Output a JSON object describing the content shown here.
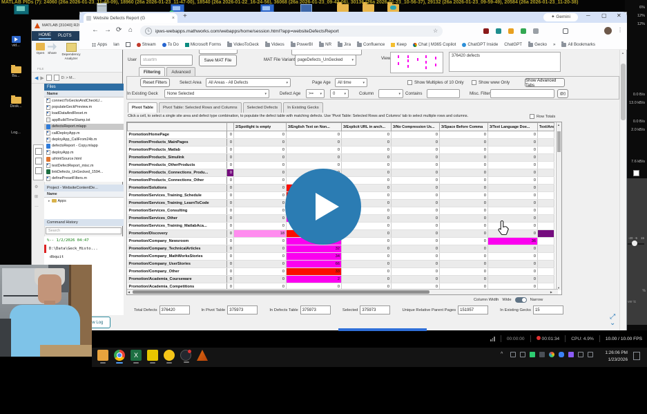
{
  "top": {
    "pids_text": "MATLAB PIDs (7): 24060 (26a 2026-01-23_11-48-09), 18960 (26a 2026-01-23_11-47-00), 18540 (26a 2026-01-22_16-24-56), 36068 (26a 2026-01-23_09-43-06), 30136 (26a 2026-01-23_10-56-37), 29132 (26a 2026-01-23_09-59-49), 20584 (26a 2026-01-23_11-20-38)"
  },
  "desktop": {
    "top_icons": [
      "monitor-teal",
      "recycle-bin",
      "monitor-blue-badge",
      "monitor-blue",
      "window-blue",
      "folder",
      "folder",
      "folder-cloud"
    ],
    "left_icons": [
      {
        "label": "vid...",
        "kind": "video"
      },
      {
        "label": "Ba...",
        "kind": "folder"
      },
      {
        "label": "Desk...",
        "kind": "folder"
      },
      {
        "label": "Log...",
        "kind": "warning"
      }
    ]
  },
  "side": {
    "cpu": [
      "6%",
      "12%",
      "12%"
    ],
    "net": [
      "0.0 B/s",
      "13.0 kB/s",
      "0.0 B/s",
      "2.0 kB/s"
    ],
    "rate": "7.6 kB/s",
    "slider_labels": [
      "-20",
      "-5",
      "15"
    ],
    "pct": "%",
    "misc": "ver tc"
  },
  "browser": {
    "tab_title": "Website Defects Report (G",
    "close_glyph": "×",
    "new_tab_glyph": "+",
    "gemini_label": "✦ Gemini",
    "url": "ipws-webapps.mathworks.com/webapps/home/session.html?app=websiteDefectsReport",
    "bookmarks": [
      {
        "label": "Apps",
        "icon": "apps"
      },
      {
        "label": "Ian",
        "icon": "none"
      },
      {
        "label": "",
        "icon": "grid"
      },
      {
        "label": "Stream",
        "icon": "stream"
      },
      {
        "label": "To Do",
        "icon": "todo"
      },
      {
        "label": "Microsoft Forms",
        "icon": "forms"
      },
      {
        "label": "VideoToGeck",
        "icon": "folder"
      },
      {
        "label": "Videos",
        "icon": "folder"
      },
      {
        "label": "PowerBI",
        "icon": "folder"
      },
      {
        "label": "NR",
        "icon": "folder"
      },
      {
        "label": "Jira",
        "icon": "folder"
      },
      {
        "label": "Confluence",
        "icon": "folder"
      },
      {
        "label": "Keep",
        "icon": "keep"
      },
      {
        "label": "Chat | M365 Copilot",
        "icon": "copilot"
      },
      {
        "label": "ChatGPT Inside",
        "icon": "gpt"
      },
      {
        "label": "ChatGPT",
        "icon": "none"
      },
      {
        "label": "Gecko",
        "icon": "folder"
      },
      {
        "label": "»",
        "icon": "none"
      },
      {
        "label": "All Bookmarks",
        "icon": "folder"
      }
    ]
  },
  "matlab": {
    "title": "MATLAB [31040] R2025a (release Up...",
    "ribbon_tabs": [
      "HOME",
      "PLOTS"
    ],
    "toolbar": [
      {
        "label": "Open",
        "icon": "folder"
      },
      {
        "label": "Share",
        "icon": "share"
      },
      {
        "label": "Dependency Analyzer",
        "icon": "dep"
      },
      {
        "label": "Com M",
        "icon": "none"
      }
    ],
    "file_section_label": "FILE",
    "breadcrumb": "D: > M...",
    "files_title": "Files",
    "name_header": "Name",
    "files": [
      {
        "name": "connectToGeckoAndCheckU...",
        "type": "m"
      },
      {
        "name": "populateGeckPreview.m",
        "type": "m"
      },
      {
        "name": "loadDataAndReset.m",
        "type": "m"
      },
      {
        "name": "appBuildTimeStamp.txt",
        "type": "txt"
      },
      {
        "name": "defectsReport.mlapp",
        "type": "mlapp",
        "selected": true
      },
      {
        "name": "callDeployApp.m",
        "type": "m"
      },
      {
        "name": "deployApp_CallFrom24b.m",
        "type": "m"
      },
      {
        "name": "defectsReport - Copy.mlapp",
        "type": "mlapp"
      },
      {
        "name": "deployApp.m",
        "type": "m"
      },
      {
        "name": "uihtmlSource.html",
        "type": "html"
      },
      {
        "name": "testDefectReport_misc.m",
        "type": "m"
      },
      {
        "name": "linkDefects_UnGecked_1594...",
        "type": "xlsx"
      },
      {
        "name": "definePresetFilters.m",
        "type": "m"
      }
    ],
    "project_title": "Project - WebsiteContentDe...",
    "project_name_header": "Name",
    "project_rows": [
      {
        "name": "Apps"
      }
    ],
    "history_title": "Command History",
    "search_placeholder": "Search",
    "history": [
      {
        "text": "%-- 1/2/2026 04:47",
        "kind": "stamp"
      },
      {
        "text": "D:\\Data\\Geck_Histo...",
        "kind": "error"
      },
      {
        "text": "dbquit",
        "kind": "cmd"
      }
    ]
  },
  "app": {
    "user_label": "User",
    "user_value": "stuartm",
    "save_button": "Save MAT File",
    "variant_label": "MAT File Variant",
    "variant_value": "pageDefects_UnGecked",
    "view_label": "View",
    "defects_summary": "376420 defects",
    "filter_tabs": [
      "Filtering",
      "Advanced"
    ],
    "reset_button": "Reset Filters",
    "select_area_label": "Select Area",
    "select_area_value": "All Areas - All Defects",
    "page_age_label": "Page Age",
    "page_age_value": "All time",
    "chk_multiples": "Show Multiples of 10 Only",
    "chk_www": "Show www Only",
    "advanced_tabs_button": "Show Advanced Tabs",
    "in_existing_label": "In Existing Geck",
    "in_existing_value": "None Selected",
    "defect_age_label": "Defect Age",
    "defect_age_op": ">=",
    "defect_age_value": "0",
    "column_label": "Column",
    "contains_label": "Contains",
    "misc_filter_label": "Misc. Filter",
    "fn_button": "@()",
    "pivot_tabs": [
      "Pivot Table",
      "Pivot Table: Selected Rows and Columns",
      "Selected Defects",
      "In Existing Gecks"
    ],
    "instruction": "Click a cell, to select a single site area and defect type combination, to populate the defect table with matching defects. Use 'Pivot Table: Selected Rows and Columns' tab to select multiple rows and columns.",
    "row_totals_label": "Row Totals",
    "column_width_label": "Column Width",
    "wide_label": "Wide",
    "narrow_label": "Narrow",
    "show_log_button": "Show Log",
    "pivot": {
      "headers": [
        "2/Spotlight is empty",
        "3/English Text on Non...",
        "3/Explicit URL in anch...",
        "3/No Compression Us...",
        "3/Space Before Comma",
        "3/Text Language Doe...",
        "Text/Ancho"
      ],
      "rows": [
        {
          "n": "Promotion/HomePage"
        },
        {
          "n": "Promotion/Products_MainPages"
        },
        {
          "n": "Promotion/Products_Matlab"
        },
        {
          "n": "Promotion/Products_Simulink"
        },
        {
          "n": "Promotion/Products_OtherProducts"
        },
        {
          "n": "Promotion/Products_Connections_Produ...",
          "cut": {
            "bg": "purple",
            "v": "0"
          }
        },
        {
          "n": "Promotion/Products_Connections_Other"
        },
        {
          "n": "Promotion/Solutions",
          "c": {
            "1": {
              "bg": "red",
              "v": ""
            }
          }
        },
        {
          "n": "Promotion/Services_Training_Schedule",
          "c": {
            "1": {
              "bg": "red",
              "v": ""
            }
          }
        },
        {
          "n": "Promotion/Services_Training_LearnToCode"
        },
        {
          "n": "Promotion/Services_Consulting",
          "c": {
            "1": {
              "bg": "magenta",
              "v": ""
            }
          }
        },
        {
          "n": "Promotion/Services_Other",
          "c": {
            "1": {
              "bg": "magenta",
              "v": ""
            }
          }
        },
        {
          "n": "Promotion/Services_Training_MatlabAca..."
        },
        {
          "n": "Promotion/Discovery",
          "c": {
            "0": {
              "bg": "pink",
              "v": "18"
            },
            "1": {
              "bg": "red",
              "v": ""
            },
            "6": {
              "bg": "purple",
              "v": ""
            }
          }
        },
        {
          "n": "Promotion/Company_Newsroom",
          "c": {
            "1": {
              "bg": "magenta",
              "v": ""
            },
            "5": {
              "bg": "magenta",
              "v": "36"
            }
          }
        },
        {
          "n": "Promotion/Company_TechnicalArticles",
          "c": {
            "1": {
              "bg": "magenta",
              "v": "32"
            }
          }
        },
        {
          "n": "Promotion/Company_MathWorksStories",
          "c": {
            "1": {
              "bg": "magenta",
              "v": "34"
            }
          }
        },
        {
          "n": "Promotion/Company_UserStories",
          "c": {
            "1": {
              "bg": "magenta",
              "v": "66"
            }
          }
        },
        {
          "n": "Promotion/Company_Other",
          "c": {
            "1": {
              "bg": "red",
              "v": "33"
            }
          }
        },
        {
          "n": "Promotion/Academia_Courseware",
          "c": {
            "1": {
              "bg": "magenta",
              "v": "2"
            }
          }
        },
        {
          "n": "Promotion/Academia_Competitions"
        }
      ]
    },
    "footer": [
      [
        "Total Defects",
        "376420"
      ],
      [
        "In Pivot Table",
        "375973"
      ],
      [
        "In Defects Table",
        "375973"
      ],
      [
        "Selected",
        "375973"
      ],
      [
        "Unique Relative Parent Pages",
        "151957"
      ],
      [
        "In Existing Gecks",
        "15"
      ]
    ]
  },
  "obs": {
    "live": "00:00:00",
    "rec": "00:01:34",
    "cpu": "CPU: 4.9%",
    "fps": "10.00 / 10.00 FPS"
  },
  "taskbar": {
    "time": "1:26:06 PM",
    "date": "1/23/2026",
    "apps": [
      "folder",
      "chrome-active",
      "excel",
      "notes",
      "emoji",
      "obs",
      "matlab"
    ]
  },
  "colors": {
    "magenta": "#fb00ef",
    "red": "#fb0d00",
    "pink": "#ff8cef",
    "purple": "#750c7e",
    "play_blue": "#2b7cb3"
  }
}
